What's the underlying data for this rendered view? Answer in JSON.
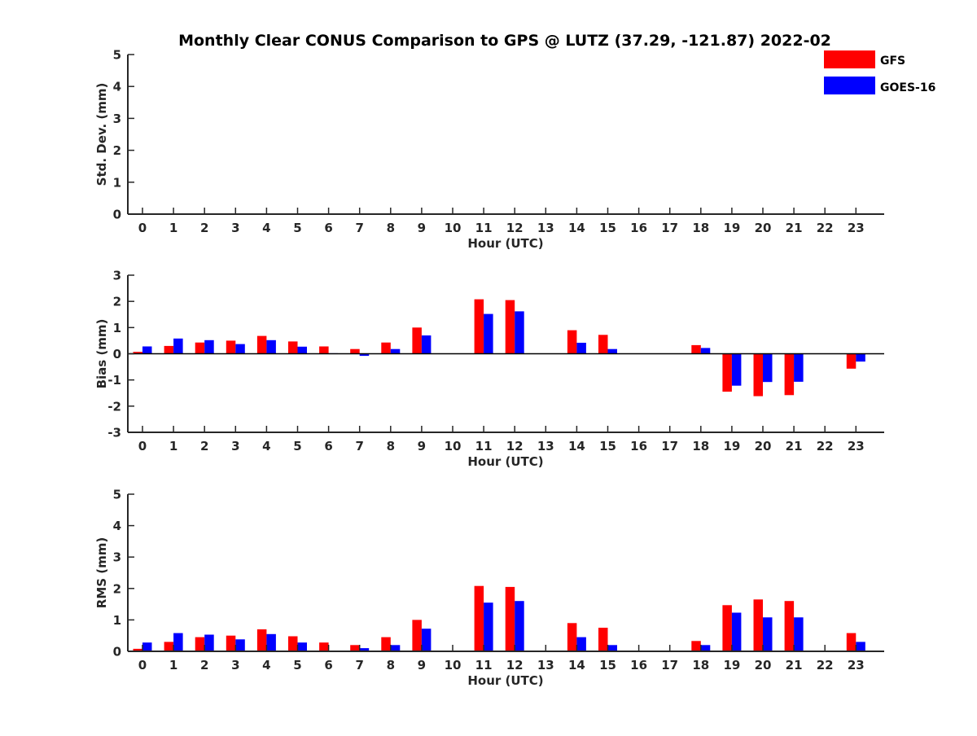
{
  "title": "Monthly Clear CONUS Comparison to GPS @ LUTZ (37.29, -121.87) 2022-02",
  "colors": {
    "GFS": "#ff0000",
    "GOES-16": "#0000ff",
    "axis": "#262626"
  },
  "legend": {
    "placement": "top-right",
    "entries": [
      "GFS",
      "GOES-16"
    ]
  },
  "chart_data": [
    {
      "type": "bar",
      "title": "Monthly Clear CONUS Comparison to GPS @ LUTZ (37.29, -121.87) 2022-02",
      "xlabel": "Hour (UTC)",
      "ylabel": "Std. Dev. (mm)",
      "ylim": [
        0,
        5
      ],
      "yticks": [
        0,
        1,
        2,
        3,
        4,
        5
      ],
      "categories": [
        "0",
        "1",
        "2",
        "3",
        "4",
        "5",
        "6",
        "7",
        "8",
        "9",
        "10",
        "11",
        "12",
        "13",
        "14",
        "15",
        "16",
        "17",
        "18",
        "19",
        "20",
        "21",
        "22",
        "23"
      ],
      "series": [
        {
          "name": "GFS",
          "values": [
            null,
            null,
            null,
            null,
            null,
            null,
            null,
            null,
            null,
            null,
            null,
            null,
            null,
            null,
            null,
            null,
            null,
            null,
            null,
            null,
            null,
            null,
            null,
            null
          ]
        },
        {
          "name": "GOES-16",
          "values": [
            null,
            null,
            null,
            null,
            null,
            null,
            null,
            null,
            null,
            null,
            null,
            null,
            null,
            null,
            null,
            null,
            null,
            null,
            null,
            null,
            null,
            null,
            null,
            null
          ]
        }
      ],
      "grid": false
    },
    {
      "type": "bar",
      "xlabel": "Hour (UTC)",
      "ylabel": "Bias (mm)",
      "ylim": [
        -3,
        3
      ],
      "yticks": [
        -3,
        -2,
        -1,
        0,
        1,
        2,
        3
      ],
      "zero_line": true,
      "categories": [
        "0",
        "1",
        "2",
        "3",
        "4",
        "5",
        "6",
        "7",
        "8",
        "9",
        "10",
        "11",
        "12",
        "13",
        "14",
        "15",
        "16",
        "17",
        "18",
        "19",
        "20",
        "21",
        "22",
        "23"
      ],
      "series": [
        {
          "name": "GFS",
          "values": [
            0.07,
            0.3,
            0.43,
            0.5,
            0.68,
            0.47,
            0.28,
            0.18,
            0.43,
            1.0,
            null,
            2.08,
            2.05,
            null,
            0.9,
            0.72,
            null,
            null,
            0.33,
            -1.45,
            -1.62,
            -1.58,
            null,
            -0.57
          ]
        },
        {
          "name": "GOES-16",
          "values": [
            0.28,
            0.58,
            0.52,
            0.37,
            0.52,
            0.27,
            0.02,
            -0.08,
            0.18,
            0.7,
            null,
            1.52,
            1.62,
            null,
            0.42,
            0.18,
            null,
            null,
            0.22,
            -1.22,
            -1.08,
            -1.07,
            null,
            -0.3
          ]
        }
      ],
      "grid": false
    },
    {
      "type": "bar",
      "xlabel": "Hour (UTC)",
      "ylabel": "RMS (mm)",
      "ylim": [
        0,
        5
      ],
      "yticks": [
        0,
        1,
        2,
        3,
        4,
        5
      ],
      "categories": [
        "0",
        "1",
        "2",
        "3",
        "4",
        "5",
        "6",
        "7",
        "8",
        "9",
        "10",
        "11",
        "12",
        "13",
        "14",
        "15",
        "16",
        "17",
        "18",
        "19",
        "20",
        "21",
        "22",
        "23"
      ],
      "series": [
        {
          "name": "GFS",
          "values": [
            0.08,
            0.3,
            0.45,
            0.5,
            0.7,
            0.48,
            0.28,
            0.2,
            0.45,
            1.0,
            null,
            2.08,
            2.05,
            null,
            0.9,
            0.75,
            null,
            null,
            0.33,
            1.47,
            1.65,
            1.6,
            null,
            0.58
          ]
        },
        {
          "name": "GOES-16",
          "values": [
            0.28,
            0.58,
            0.53,
            0.38,
            0.55,
            0.28,
            0.02,
            0.1,
            0.2,
            0.72,
            null,
            1.55,
            1.6,
            null,
            0.45,
            0.2,
            null,
            null,
            0.2,
            1.23,
            1.08,
            1.08,
            null,
            0.3
          ]
        }
      ],
      "grid": false
    }
  ]
}
